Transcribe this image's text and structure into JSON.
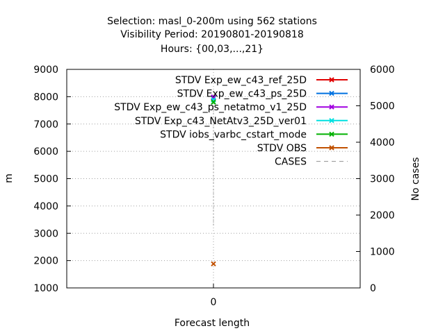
{
  "chart_data": {
    "type": "line",
    "title_lines": [
      "Selection: masl_0-200m using   562 stations",
      "Visibility   Period: 20190801-20190818",
      "Hours: {00,03,...,21}"
    ],
    "xlabel": "Forecast length",
    "ylabel": "m",
    "y2label": "No cases",
    "x_ticks": [
      "0"
    ],
    "y_ticks": [
      "1000",
      "2000",
      "3000",
      "4000",
      "5000",
      "6000",
      "7000",
      "8000",
      "9000"
    ],
    "y2_ticks": [
      "0",
      "1000",
      "2000",
      "3000",
      "4000",
      "5000",
      "6000"
    ],
    "ylim": [
      1000,
      9000
    ],
    "y2lim": [
      0,
      6000
    ],
    "grid": true,
    "legend_position": "top-right",
    "x": [
      0
    ],
    "series": [
      {
        "name": "STDV Exp_ew_c43_ref_25D",
        "color": "#e00000",
        "values": [
          7950
        ],
        "axis": "left"
      },
      {
        "name": "STDV Exp_ew_c43_ps_25D",
        "color": "#0072e0",
        "values": [
          7960
        ],
        "axis": "left"
      },
      {
        "name": "STDV Exp_ew_c43_ps_netatmo_v1_25D",
        "color": "#a000e0",
        "values": [
          7990
        ],
        "axis": "left"
      },
      {
        "name": "STDV Exp_c43_NetAtv3_25D_ver01",
        "color": "#00e0e0",
        "values": [
          7880
        ],
        "axis": "left"
      },
      {
        "name": "STDV iobs_varbc_cstart_mode",
        "color": "#00b000",
        "values": [
          7800
        ],
        "axis": "left"
      },
      {
        "name": "STDV OBS",
        "color": "#c05000",
        "values": [
          1880
        ],
        "axis": "left"
      },
      {
        "name": "CASES",
        "color": "#909090",
        "values": [
          3380
        ],
        "axis": "right",
        "dashed": true
      }
    ]
  }
}
